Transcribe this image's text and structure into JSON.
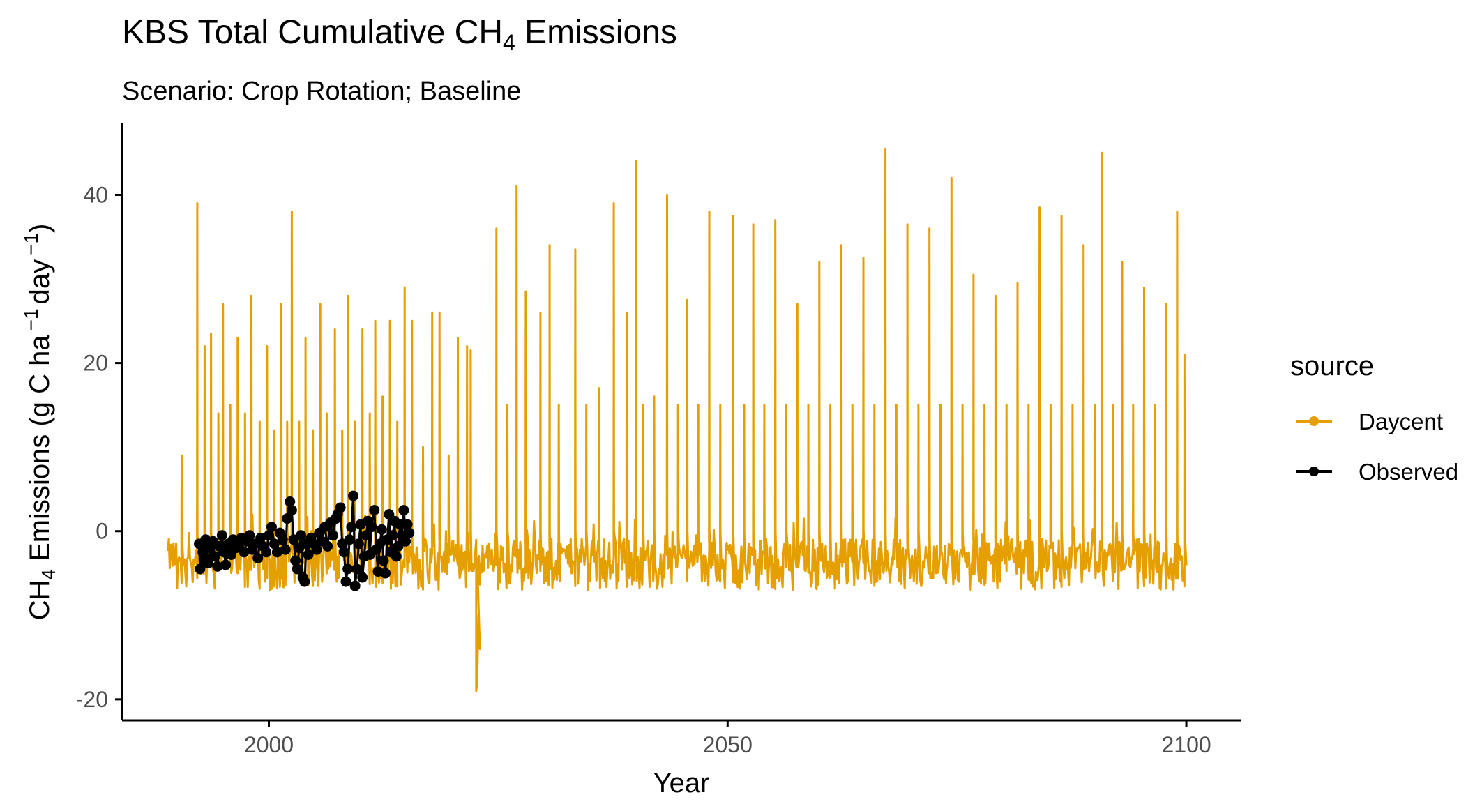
{
  "chart_data": {
    "type": "line",
    "title_main": "KBS Total Cumulative CH",
    "title_sub": "4",
    "title_end": " Emissions",
    "subtitle": "Scenario: Crop Rotation; Baseline",
    "xlabel": "Year",
    "ylabel_main": "CH",
    "ylabel_sub": "4",
    "ylabel_end": " Emissions (g C ha",
    "ylabel_sup1": "−1",
    "ylabel_mid": "day",
    "ylabel_sup2": "−1",
    "ylabel_close": ")",
    "xlim": [
      1984,
      2106
    ],
    "ylim": [
      -22.5,
      48.5
    ],
    "x_ticks": [
      2000,
      2050,
      2100
    ],
    "x_tick_labels": [
      "2000",
      "2050",
      "2100"
    ],
    "y_ticks": [
      -20,
      0,
      20,
      40
    ],
    "y_tick_labels": [
      "-20",
      "0",
      "20",
      "40"
    ],
    "grid": false,
    "legend": {
      "title": "source",
      "placement": "right",
      "entries": [
        {
          "label": "Daycent",
          "color": "#E69F00"
        },
        {
          "label": "Observed",
          "color": "#000000"
        }
      ]
    },
    "series": [
      {
        "name": "Daycent",
        "kind": "line",
        "color": "#E69F00",
        "x_range": [
          1989,
          2100
        ],
        "baseline": -3,
        "trough": -7,
        "anomaly": {
          "x": 2022.6,
          "y": -19
        },
        "peaks": [
          [
            1990.5,
            9
          ],
          [
            1992.2,
            39
          ],
          [
            1993.0,
            22
          ],
          [
            1993.7,
            23.5
          ],
          [
            1994.5,
            14
          ],
          [
            1995.0,
            27
          ],
          [
            1995.8,
            15
          ],
          [
            1996.6,
            23
          ],
          [
            1997.4,
            14
          ],
          [
            1998.1,
            28
          ],
          [
            1999.0,
            13
          ],
          [
            1999.8,
            22
          ],
          [
            2000.6,
            12
          ],
          [
            2001.3,
            27
          ],
          [
            2002.0,
            13
          ],
          [
            2002.5,
            38
          ],
          [
            2003.3,
            13
          ],
          [
            2004.0,
            23
          ],
          [
            2004.8,
            12
          ],
          [
            2005.6,
            27
          ],
          [
            2006.3,
            14
          ],
          [
            2007.2,
            24
          ],
          [
            2008.0,
            12
          ],
          [
            2008.6,
            28
          ],
          [
            2009.4,
            13
          ],
          [
            2010.2,
            24
          ],
          [
            2011.0,
            14
          ],
          [
            2011.6,
            25
          ],
          [
            2012.4,
            16
          ],
          [
            2013.2,
            25
          ],
          [
            2014.0,
            13
          ],
          [
            2014.8,
            29
          ],
          [
            2015.6,
            25
          ],
          [
            2016.8,
            10
          ],
          [
            2017.8,
            26
          ],
          [
            2018.6,
            26
          ],
          [
            2019.6,
            9
          ],
          [
            2020.6,
            23
          ],
          [
            2021.6,
            22
          ],
          [
            2022.0,
            21.5
          ],
          [
            2024.8,
            36
          ],
          [
            2026.0,
            15
          ],
          [
            2027.0,
            41
          ],
          [
            2028.0,
            28.5
          ],
          [
            2029.6,
            26
          ],
          [
            2030.6,
            34
          ],
          [
            2031.6,
            15
          ],
          [
            2033.4,
            33.5
          ],
          [
            2034.6,
            15
          ],
          [
            2036.0,
            17
          ],
          [
            2037.6,
            39
          ],
          [
            2039.0,
            26
          ],
          [
            2040.0,
            44
          ],
          [
            2040.8,
            15
          ],
          [
            2042.0,
            16
          ],
          [
            2043.4,
            40
          ],
          [
            2044.6,
            15
          ],
          [
            2045.6,
            27.5
          ],
          [
            2046.8,
            15
          ],
          [
            2048.0,
            38
          ],
          [
            2049.2,
            15
          ],
          [
            2050.6,
            37.5
          ],
          [
            2051.8,
            15
          ],
          [
            2052.8,
            36.5
          ],
          [
            2054.0,
            15
          ],
          [
            2055.2,
            37
          ],
          [
            2056.4,
            15
          ],
          [
            2057.6,
            27
          ],
          [
            2058.8,
            15
          ],
          [
            2060.0,
            32
          ],
          [
            2061.2,
            15
          ],
          [
            2062.4,
            34
          ],
          [
            2063.6,
            15
          ],
          [
            2064.8,
            32.5
          ],
          [
            2066.0,
            15
          ],
          [
            2067.2,
            45.5
          ],
          [
            2068.4,
            15
          ],
          [
            2069.6,
            36.5
          ],
          [
            2070.8,
            15
          ],
          [
            2072.0,
            36
          ],
          [
            2073.2,
            15
          ],
          [
            2074.4,
            42
          ],
          [
            2075.6,
            15
          ],
          [
            2076.8,
            30.5
          ],
          [
            2078.0,
            15
          ],
          [
            2079.2,
            28
          ],
          [
            2080.4,
            15
          ],
          [
            2081.6,
            29.5
          ],
          [
            2082.8,
            15
          ],
          [
            2084.0,
            38.5
          ],
          [
            2085.2,
            15
          ],
          [
            2086.4,
            37.5
          ],
          [
            2087.6,
            15
          ],
          [
            2088.8,
            34
          ],
          [
            2090.0,
            15
          ],
          [
            2090.8,
            45
          ],
          [
            2092.0,
            15
          ],
          [
            2093.0,
            32
          ],
          [
            2094.2,
            15
          ],
          [
            2095.4,
            29
          ],
          [
            2096.6,
            15
          ],
          [
            2097.8,
            27
          ],
          [
            2099.0,
            38
          ],
          [
            2099.8,
            21
          ]
        ]
      },
      {
        "name": "Observed",
        "kind": "points",
        "color": "#000000",
        "points": [
          [
            1992.4,
            -1.5
          ],
          [
            1992.5,
            -4.5
          ],
          [
            1992.8,
            -2.5
          ],
          [
            1993.0,
            -3.5
          ],
          [
            1993.1,
            -1
          ],
          [
            1993.4,
            -3.8
          ],
          [
            1993.6,
            -2
          ],
          [
            1993.9,
            -1.2
          ],
          [
            1994.1,
            -3
          ],
          [
            1994.4,
            -4.2
          ],
          [
            1994.6,
            -1.8
          ],
          [
            1994.9,
            -0.5
          ],
          [
            1995.1,
            -2.5
          ],
          [
            1995.3,
            -4
          ],
          [
            1995.6,
            -1.5
          ],
          [
            1995.9,
            -2.8
          ],
          [
            1996.1,
            -1
          ],
          [
            1996.4,
            -2
          ],
          [
            1996.7,
            -1.8
          ],
          [
            1997.0,
            -0.8
          ],
          [
            1997.3,
            -2.5
          ],
          [
            1997.6,
            -1.2
          ],
          [
            1997.9,
            -0.5
          ],
          [
            1998.2,
            -2.2
          ],
          [
            1998.5,
            -1.5
          ],
          [
            1998.8,
            -3.2
          ],
          [
            1999.1,
            -0.8
          ],
          [
            1999.4,
            -1.8
          ],
          [
            1999.7,
            -2.5
          ],
          [
            2000.0,
            -0.5
          ],
          [
            2000.3,
            0.5
          ],
          [
            2000.6,
            -1.5
          ],
          [
            2000.9,
            -2.5
          ],
          [
            2001.2,
            -0.2
          ],
          [
            2001.5,
            -1
          ],
          [
            2001.8,
            -2.2
          ],
          [
            2002.0,
            1.5
          ],
          [
            2002.3,
            3.5
          ],
          [
            2002.5,
            2.5
          ],
          [
            2002.7,
            -1
          ],
          [
            2002.9,
            -3.5
          ],
          [
            2003.1,
            -4.5
          ],
          [
            2003.3,
            -2
          ],
          [
            2003.5,
            -0.5
          ],
          [
            2003.7,
            -5.5
          ],
          [
            2003.9,
            -6
          ],
          [
            2004.1,
            -1.5
          ],
          [
            2004.3,
            -2.8
          ],
          [
            2004.6,
            -0.8
          ],
          [
            2004.9,
            -1.5
          ],
          [
            2005.2,
            -2.2
          ],
          [
            2005.5,
            -0.2
          ],
          [
            2005.8,
            -1.2
          ],
          [
            2006.1,
            0.5
          ],
          [
            2006.4,
            -1.8
          ],
          [
            2006.7,
            1
          ],
          [
            2007.0,
            -0.5
          ],
          [
            2007.3,
            1.5
          ],
          [
            2007.5,
            2
          ],
          [
            2007.8,
            2.8
          ],
          [
            2008.0,
            -1.5
          ],
          [
            2008.2,
            -2.5
          ],
          [
            2008.4,
            -6
          ],
          [
            2008.6,
            -4.5
          ],
          [
            2008.8,
            -1
          ],
          [
            2009.0,
            0.5
          ],
          [
            2009.2,
            4.2
          ],
          [
            2009.4,
            -6.5
          ],
          [
            2009.6,
            -4.5
          ],
          [
            2009.8,
            -1.5
          ],
          [
            2010.0,
            0.8
          ],
          [
            2010.2,
            -5.5
          ],
          [
            2010.4,
            -3
          ],
          [
            2010.6,
            -0.5
          ],
          [
            2010.8,
            1.2
          ],
          [
            2011.0,
            -2.8
          ],
          [
            2011.2,
            0.5
          ],
          [
            2011.5,
            2.5
          ],
          [
            2011.7,
            -2.2
          ],
          [
            2011.9,
            -4.8
          ],
          [
            2012.1,
            -1.5
          ],
          [
            2012.3,
            0.2
          ],
          [
            2012.5,
            -3.5
          ],
          [
            2012.7,
            -5
          ],
          [
            2012.9,
            -1
          ],
          [
            2013.1,
            2
          ],
          [
            2013.3,
            -2.5
          ],
          [
            2013.5,
            -0.5
          ],
          [
            2013.7,
            1.2
          ],
          [
            2013.9,
            -3
          ],
          [
            2014.1,
            -1.8
          ],
          [
            2014.3,
            0.8
          ],
          [
            2014.5,
            -0.5
          ],
          [
            2014.7,
            2.5
          ],
          [
            2014.9,
            -1.2
          ],
          [
            2015.1,
            0.8
          ],
          [
            2015.3,
            -0.2
          ]
        ]
      }
    ]
  }
}
